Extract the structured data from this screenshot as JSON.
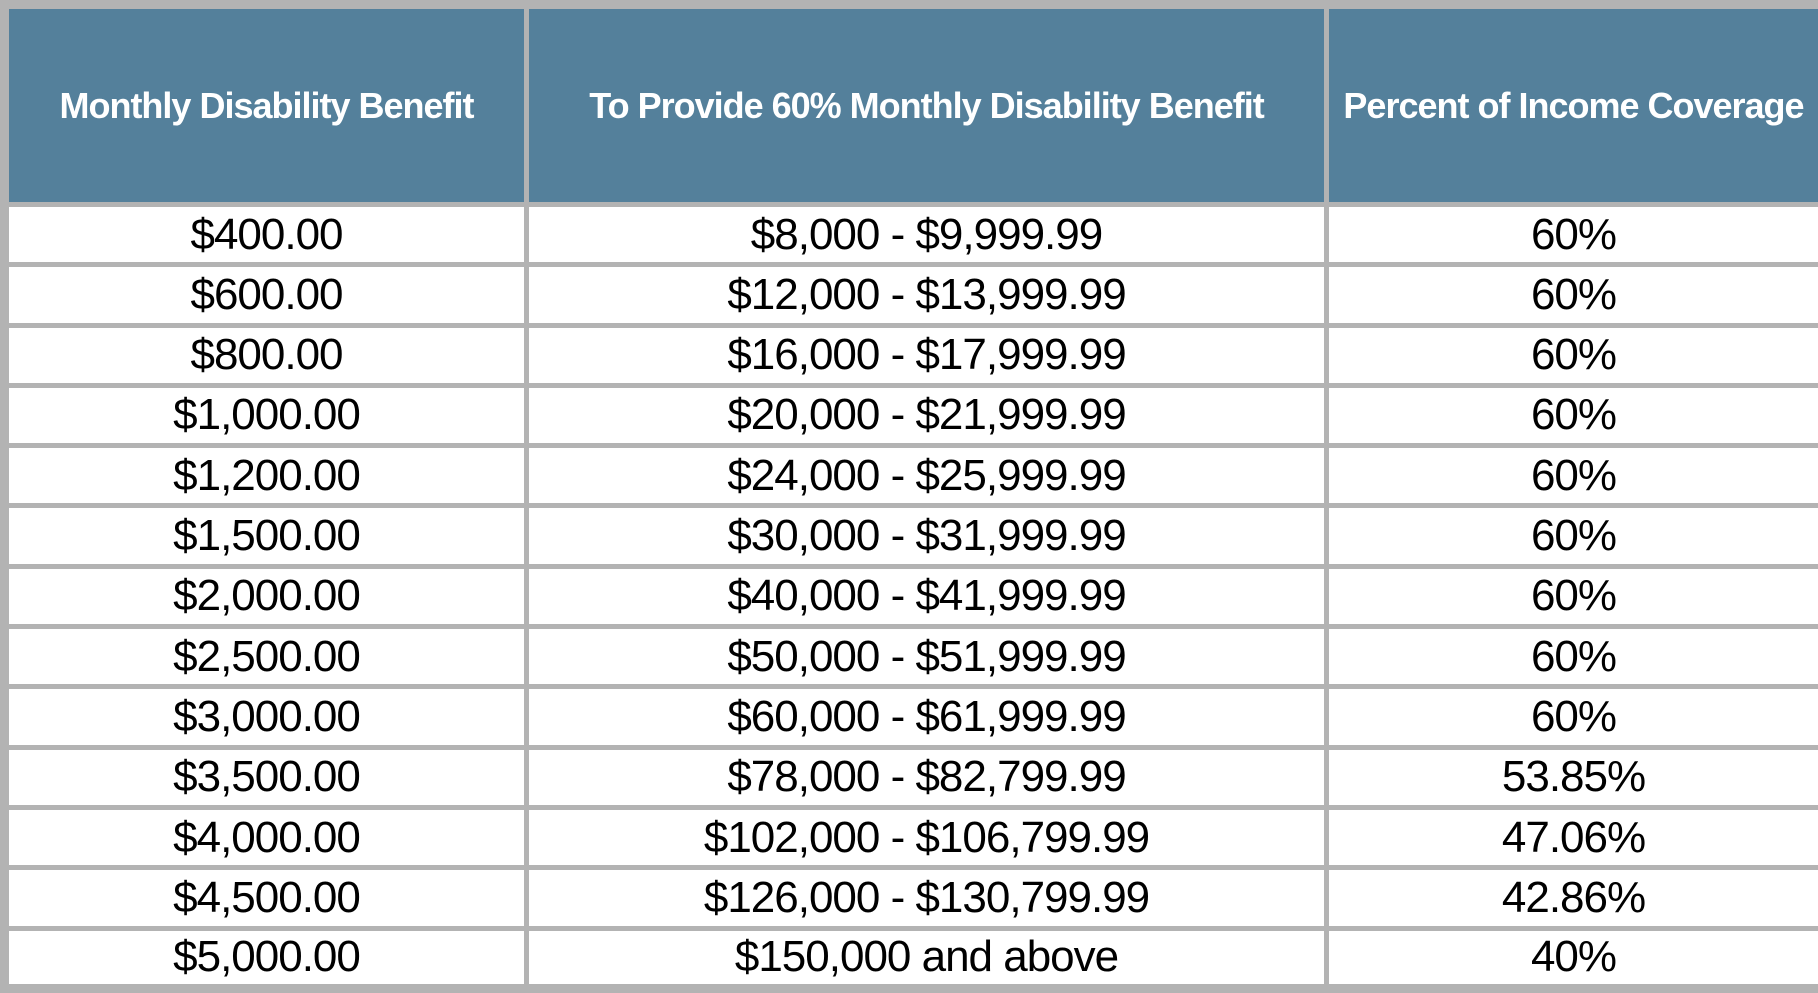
{
  "table": {
    "headers": [
      "Monthly Disability Benefit",
      "To Provide 60% Monthly Disability Benefit",
      "Percent of Income Coverage"
    ],
    "rows": [
      [
        "$400.00",
        "$8,000 - $9,999.99",
        "60%"
      ],
      [
        "$600.00",
        "$12,000 - $13,999.99",
        "60%"
      ],
      [
        "$800.00",
        "$16,000 - $17,999.99",
        "60%"
      ],
      [
        "$1,000.00",
        "$20,000 - $21,999.99",
        "60%"
      ],
      [
        "$1,200.00",
        "$24,000 - $25,999.99",
        "60%"
      ],
      [
        "$1,500.00",
        "$30,000 - $31,999.99",
        "60%"
      ],
      [
        "$2,000.00",
        "$40,000 - $41,999.99",
        "60%"
      ],
      [
        "$2,500.00",
        "$50,000 - $51,999.99",
        "60%"
      ],
      [
        "$3,000.00",
        "$60,000 - $61,999.99",
        "60%"
      ],
      [
        "$3,500.00",
        "$78,000 - $82,799.99",
        "53.85%"
      ],
      [
        "$4,000.00",
        "$102,000 - $106,799.99",
        "47.06%"
      ],
      [
        "$4,500.00",
        "$126,000 - $130,799.99",
        "42.86%"
      ],
      [
        "$5,000.00",
        "$150,000 and above",
        "40%"
      ]
    ]
  },
  "colors": {
    "header_bg": "#54809B",
    "header_text": "#FFFFFF",
    "border": "#B3B3B3",
    "cell_bg": "#FFFFFF",
    "cell_text": "#000000"
  },
  "chart_data": {
    "type": "table",
    "columns": [
      "Monthly Disability Benefit",
      "To Provide 60% Monthly Disability Benefit",
      "Percent of Income Coverage"
    ],
    "rows": [
      [
        "$400.00",
        "$8,000 - $9,999.99",
        "60%"
      ],
      [
        "$600.00",
        "$12,000 - $13,999.99",
        "60%"
      ],
      [
        "$800.00",
        "$16,000 - $17,999.99",
        "60%"
      ],
      [
        "$1,000.00",
        "$20,000 - $21,999.99",
        "60%"
      ],
      [
        "$1,200.00",
        "$24,000 - $25,999.99",
        "60%"
      ],
      [
        "$1,500.00",
        "$30,000 - $31,999.99",
        "60%"
      ],
      [
        "$2,000.00",
        "$40,000 - $41,999.99",
        "60%"
      ],
      [
        "$2,500.00",
        "$50,000 - $51,999.99",
        "60%"
      ],
      [
        "$3,000.00",
        "$60,000 - $61,999.99",
        "60%"
      ],
      [
        "$3,500.00",
        "$78,000 - $82,799.99",
        "53.85%"
      ],
      [
        "$4,000.00",
        "$102,000 - $106,799.99",
        "47.06%"
      ],
      [
        "$4,500.00",
        "$126,000 - $130,799.99",
        "42.86%"
      ],
      [
        "$5,000.00",
        "$150,000 and above",
        "40%"
      ]
    ]
  }
}
